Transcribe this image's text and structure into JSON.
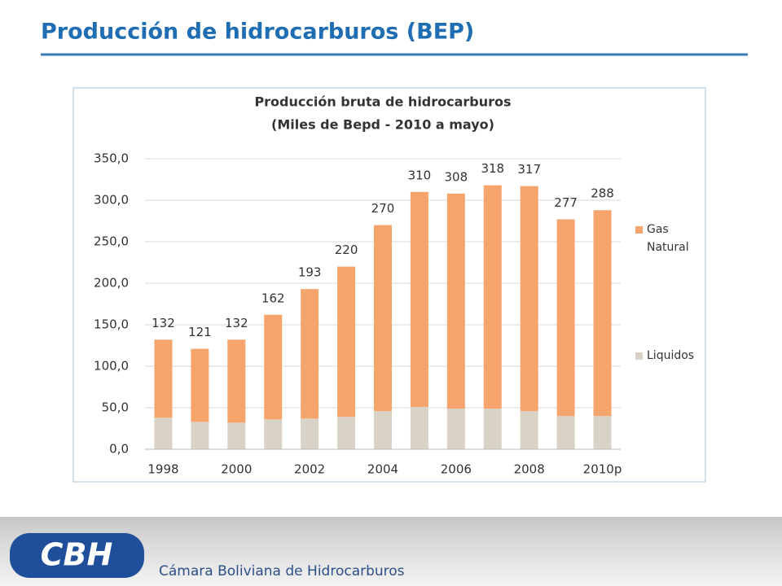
{
  "slide_title": "Producción de hidrocarburos (BEP)",
  "footer": {
    "logo_text": "CBH",
    "organization": "Cámara Boliviana de Hidrocarburos"
  },
  "chart_data": {
    "type": "stacked_bar",
    "title": "Producción bruta de hidrocarburos",
    "subtitle": "(Miles de Bepd - 2010 a mayo)",
    "categories": [
      "1998",
      null,
      "2000",
      null,
      "2002",
      null,
      "2004",
      null,
      "2006",
      null,
      "2008",
      null,
      "2010p"
    ],
    "series": [
      {
        "name": "Liquidos",
        "color": "#d8d3c6",
        "values": [
          38,
          33,
          32,
          36,
          37,
          39,
          46,
          51,
          49,
          49,
          46,
          40,
          40
        ]
      },
      {
        "name": "Gas Natural",
        "color": "#f5a46c",
        "values": [
          94,
          88,
          100,
          126,
          156,
          181,
          224,
          259,
          259,
          269,
          271,
          237,
          248
        ]
      }
    ],
    "totals": [
      132,
      121,
      132,
      162,
      193,
      220,
      270,
      310,
      308,
      318,
      317,
      277,
      288
    ],
    "ylim": [
      0,
      350
    ],
    "yticks": [
      {
        "value": 0,
        "label": "0,0"
      },
      {
        "value": 50,
        "label": "50,0"
      },
      {
        "value": 100,
        "label": "100,0"
      },
      {
        "value": 150,
        "label": "150,0"
      },
      {
        "value": 200,
        "label": "200,0"
      },
      {
        "value": 250,
        "label": "250,0"
      },
      {
        "value": 300,
        "label": "300,0"
      },
      {
        "value": 350,
        "label": "350,0"
      }
    ],
    "grid": true,
    "legend": "right"
  }
}
